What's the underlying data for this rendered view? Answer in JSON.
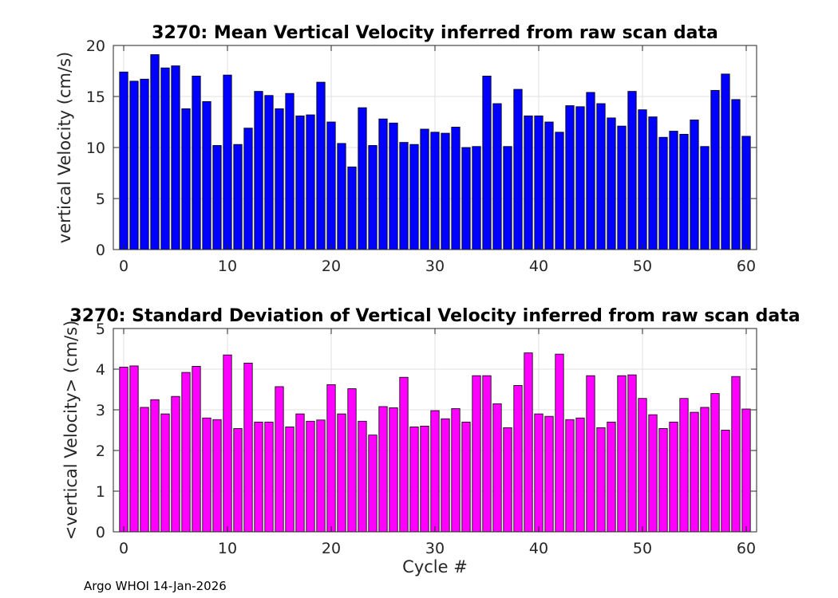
{
  "figure": {
    "footer": "Argo WHOI 14-Jan-2026"
  },
  "chart_data": [
    {
      "type": "bar",
      "title": "3270: Mean Vertical Velocity inferred from raw scan data",
      "xlabel": "",
      "ylabel": "vertical Velocity (cm/s)",
      "xlim": [
        -1,
        61
      ],
      "ylim": [
        0,
        20
      ],
      "xticks": [
        0,
        10,
        20,
        30,
        40,
        50,
        60
      ],
      "yticks": [
        0,
        5,
        10,
        15,
        20
      ],
      "grid": true,
      "color": "#0000ff",
      "x": [
        0,
        1,
        2,
        3,
        4,
        5,
        6,
        7,
        8,
        9,
        10,
        11,
        12,
        13,
        14,
        15,
        16,
        17,
        18,
        19,
        20,
        21,
        22,
        23,
        24,
        25,
        26,
        27,
        28,
        29,
        30,
        31,
        32,
        33,
        34,
        35,
        36,
        37,
        38,
        39,
        40,
        41,
        42,
        43,
        44,
        45,
        46,
        47,
        48,
        49,
        50,
        51,
        52,
        53,
        54,
        55,
        56,
        57,
        58,
        59,
        60
      ],
      "values": [
        17.4,
        16.5,
        16.7,
        19.1,
        17.8,
        18.0,
        13.8,
        17.0,
        14.5,
        10.2,
        17.1,
        10.3,
        11.9,
        15.5,
        15.1,
        13.8,
        15.3,
        13.1,
        13.2,
        16.4,
        12.5,
        10.4,
        8.1,
        13.9,
        10.2,
        12.8,
        12.4,
        10.5,
        10.3,
        11.8,
        11.5,
        11.4,
        12.0,
        10.0,
        10.1,
        17.0,
        14.3,
        10.1,
        15.7,
        13.1,
        13.1,
        12.5,
        11.5,
        14.1,
        14.0,
        15.4,
        14.3,
        12.9,
        12.1,
        15.5,
        13.7,
        13.0,
        11.0,
        11.6,
        11.3,
        12.7,
        10.1,
        15.6,
        17.2,
        14.7,
        11.1
      ]
    },
    {
      "type": "bar",
      "title": "3270: Standard Deviation of Vertical Velocity inferred from raw scan data",
      "xlabel": "Cycle #",
      "ylabel": "<vertical Velocity> (cm/s)",
      "xlim": [
        -1,
        61
      ],
      "ylim": [
        0,
        5
      ],
      "xticks": [
        0,
        10,
        20,
        30,
        40,
        50,
        60
      ],
      "yticks": [
        0,
        1,
        2,
        3,
        4,
        5
      ],
      "grid": true,
      "color": "#ff00ff",
      "x": [
        0,
        1,
        2,
        3,
        4,
        5,
        6,
        7,
        8,
        9,
        10,
        11,
        12,
        13,
        14,
        15,
        16,
        17,
        18,
        19,
        20,
        21,
        22,
        23,
        24,
        25,
        26,
        27,
        28,
        29,
        30,
        31,
        32,
        33,
        34,
        35,
        36,
        37,
        38,
        39,
        40,
        41,
        42,
        43,
        44,
        45,
        46,
        47,
        48,
        49,
        50,
        51,
        52,
        53,
        54,
        55,
        56,
        57,
        58,
        59,
        60
      ],
      "values": [
        4.05,
        4.08,
        3.06,
        3.25,
        2.9,
        3.33,
        3.92,
        4.07,
        2.8,
        2.76,
        4.35,
        2.54,
        4.15,
        2.7,
        2.7,
        3.57,
        2.58,
        2.9,
        2.72,
        2.75,
        3.62,
        2.9,
        3.52,
        2.72,
        2.38,
        3.08,
        3.05,
        3.8,
        2.58,
        2.6,
        2.98,
        2.78,
        3.03,
        2.7,
        3.84,
        3.84,
        3.15,
        2.56,
        3.6,
        4.4,
        2.9,
        2.84,
        4.37,
        2.76,
        2.8,
        3.84,
        2.56,
        2.7,
        3.84,
        3.86,
        3.28,
        2.88,
        2.54,
        2.7,
        3.28,
        2.94,
        3.06,
        3.4,
        2.5,
        3.82,
        3.02
      ]
    }
  ]
}
